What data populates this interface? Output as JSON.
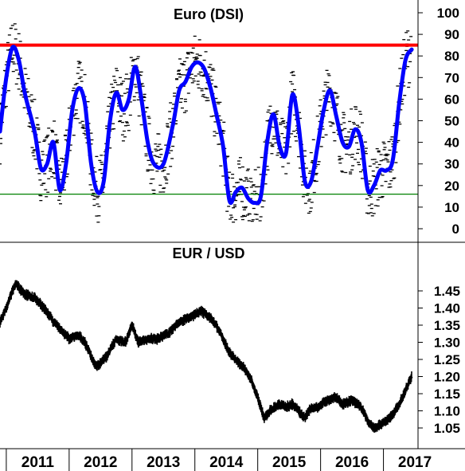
{
  "chart_data": [
    {
      "type": "line",
      "title": "Euro (DSI)",
      "ylim": [
        -5,
        105
      ],
      "yticks": [
        100,
        90,
        80,
        70,
        60,
        50,
        40,
        30,
        20,
        10,
        0
      ],
      "ytick_labels": [
        "100",
        "90",
        "80",
        "70",
        "60",
        "50",
        "40",
        "30",
        "20",
        "10",
        "0"
      ],
      "reference_lines": [
        {
          "value": 85,
          "color": "#ff0000"
        },
        {
          "value": 16,
          "color": "#008000"
        }
      ],
      "series": [
        {
          "style": "smoothed line",
          "color": "#0000ff",
          "x": [
            2010.9,
            2011.0,
            2011.1,
            2011.2,
            2011.3,
            2011.45,
            2011.55,
            2011.65,
            2011.75,
            2011.85,
            2011.95,
            2012.05,
            2012.15,
            2012.25,
            2012.35,
            2012.45,
            2012.55,
            2012.65,
            2012.75,
            2012.85,
            2012.95,
            2013.05,
            2013.15,
            2013.25,
            2013.35,
            2013.5,
            2013.65,
            2013.75,
            2013.85,
            2013.95,
            2014.05,
            2014.15,
            2014.25,
            2014.35,
            2014.45,
            2014.55,
            2014.65,
            2014.75,
            2014.85,
            2014.95,
            2015.05,
            2015.15,
            2015.25,
            2015.35,
            2015.45,
            2015.55,
            2015.65,
            2015.75,
            2015.85,
            2015.95,
            2016.05,
            2016.15,
            2016.25,
            2016.35,
            2016.45,
            2016.55,
            2016.65,
            2016.75,
            2016.85,
            2016.95,
            2017.05,
            2017.15,
            2017.25,
            2017.35,
            2017.45
          ],
          "values": [
            45,
            70,
            84,
            78,
            62,
            45,
            28,
            30,
            40,
            18,
            30,
            55,
            65,
            58,
            30,
            17,
            22,
            50,
            63,
            55,
            60,
            75,
            60,
            40,
            30,
            30,
            48,
            64,
            68,
            75,
            77,
            74,
            65,
            52,
            38,
            13,
            17,
            19,
            14,
            12,
            15,
            40,
            53,
            38,
            35,
            62,
            48,
            22,
            22,
            38,
            55,
            64,
            52,
            40,
            38,
            46,
            40,
            18,
            20,
            27,
            27,
            32,
            58,
            78,
            83
          ]
        },
        {
          "style": "raw readings (dash marks)",
          "color": "#000000",
          "note": "daily readings scattered around the smoothed line"
        }
      ]
    },
    {
      "type": "line",
      "title": "EUR / USD",
      "ylim": [
        1.0,
        1.5
      ],
      "yticks": [
        1.45,
        1.4,
        1.35,
        1.3,
        1.25,
        1.2,
        1.15,
        1.1,
        1.05
      ],
      "ytick_labels": [
        "1.45",
        "1.40",
        "1.35",
        "1.30",
        "1.25",
        "1.20",
        "1.15",
        "1.10",
        "1.05"
      ],
      "x_labels": [
        "2011",
        "2012",
        "2013",
        "2014",
        "2015",
        "2016",
        "2017"
      ],
      "x_label_years": [
        2011,
        2012,
        2013,
        2014,
        2015,
        2016,
        2017
      ],
      "xlim": [
        2010.9,
        2017.55
      ],
      "series": [
        {
          "color": "#000000",
          "x": [
            2010.9,
            2011.0,
            2011.1,
            2011.15,
            2011.3,
            2011.45,
            2011.6,
            2011.75,
            2011.85,
            2012.0,
            2012.15,
            2012.25,
            2012.4,
            2012.45,
            2012.6,
            2012.75,
            2012.9,
            2013.0,
            2013.1,
            2013.25,
            2013.4,
            2013.5,
            2013.6,
            2013.75,
            2013.9,
            2014.0,
            2014.1,
            2014.2,
            2014.3,
            2014.4,
            2014.55,
            2014.7,
            2014.8,
            2014.9,
            2015.0,
            2015.05,
            2015.1,
            2015.2,
            2015.35,
            2015.45,
            2015.55,
            2015.65,
            2015.75,
            2015.85,
            2015.95,
            2016.1,
            2016.25,
            2016.35,
            2016.5,
            2016.65,
            2016.75,
            2016.85,
            2016.95,
            2017.05,
            2017.15,
            2017.25,
            2017.35,
            2017.45
          ],
          "values": [
            1.36,
            1.4,
            1.45,
            1.47,
            1.44,
            1.43,
            1.4,
            1.36,
            1.34,
            1.31,
            1.32,
            1.3,
            1.24,
            1.23,
            1.26,
            1.31,
            1.3,
            1.35,
            1.3,
            1.31,
            1.31,
            1.32,
            1.33,
            1.36,
            1.37,
            1.38,
            1.39,
            1.38,
            1.36,
            1.33,
            1.27,
            1.24,
            1.22,
            1.19,
            1.14,
            1.11,
            1.08,
            1.1,
            1.12,
            1.11,
            1.12,
            1.1,
            1.08,
            1.11,
            1.11,
            1.13,
            1.14,
            1.12,
            1.13,
            1.11,
            1.07,
            1.05,
            1.06,
            1.07,
            1.09,
            1.12,
            1.16,
            1.2
          ]
        }
      ]
    }
  ]
}
